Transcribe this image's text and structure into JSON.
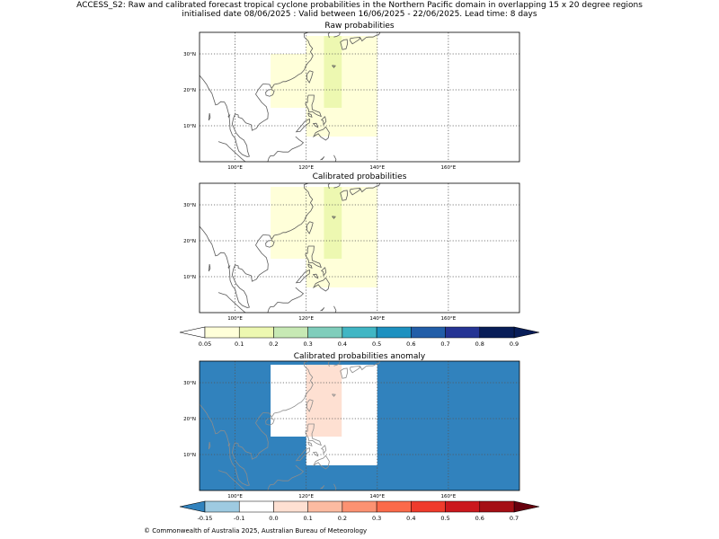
{
  "figure": {
    "title_line1": "ACCESS_S2: Raw and calibrated forecast tropical cyclone probabilities in the Northern Pacific domain in overlapping 15 x 20 degree regions",
    "title_line2": "initialised date 08/06/2025 :  Valid between 16/06/2025 - 22/06/2025. Lead time: 8 days",
    "copyright": "© Commonwealth of Australia 2025, Australian Bureau of Meteorology"
  },
  "panels": [
    {
      "id": "raw",
      "title": "Raw probabilities",
      "cells": [
        {
          "lon0": 110,
          "lon1": 130,
          "lat0": 15,
          "lat1": 30,
          "category": 0
        },
        {
          "lon0": 120,
          "lon1": 140,
          "lat0": 15,
          "lat1": 35,
          "category": 0
        },
        {
          "lon0": 120,
          "lon1": 140,
          "lat0": 7,
          "lat1": 15,
          "category": 0
        },
        {
          "lon0": 125,
          "lon1": 130,
          "lat0": 15,
          "lat1": 35,
          "category": 1
        }
      ]
    },
    {
      "id": "calibrated",
      "title": "Calibrated probabilities",
      "cells": [
        {
          "lon0": 110,
          "lon1": 130,
          "lat0": 15,
          "lat1": 35,
          "category": 0
        },
        {
          "lon0": 120,
          "lon1": 140,
          "lat0": 7,
          "lat1": 35,
          "category": 0
        },
        {
          "lon0": 125,
          "lon1": 130,
          "lat0": 15,
          "lat1": 35,
          "category": 1
        }
      ]
    },
    {
      "id": "anomaly",
      "title": "Calibrated probabilities anomaly",
      "background_category": 0,
      "cells": [
        {
          "lon0": 110,
          "lon1": 130,
          "lat0": 15,
          "lat1": 35,
          "category": 1
        },
        {
          "lon0": 120,
          "lon1": 140,
          "lat0": 7,
          "lat1": 35,
          "category": 1
        },
        {
          "lon0": 120,
          "lon1": 130,
          "lat0": 15,
          "lat1": 35,
          "category": 2
        }
      ]
    }
  ],
  "map_axes": {
    "lon_range": [
      90,
      180
    ],
    "lat_range": [
      0,
      36
    ],
    "lon_ticks": [
      100,
      120,
      140,
      160
    ],
    "lon_tick_labels": [
      "100°E",
      "120°E",
      "140°E",
      "160°E"
    ],
    "lat_ticks": [
      10,
      20,
      30
    ],
    "lat_tick_labels": [
      "10°N",
      "20°N",
      "30°N"
    ],
    "gridlines": "dotted"
  },
  "probability_colorbar": {
    "tick_labels": [
      "0.05",
      "0.1",
      "0.2",
      "0.3",
      "0.4",
      "0.5",
      "0.6",
      "0.7",
      "0.8",
      "0.9"
    ],
    "colors": [
      "#ffffd9",
      "#edf8b1",
      "#c7e9b4",
      "#7fcdbb",
      "#41b6c4",
      "#1d91c0",
      "#225ea8",
      "#253494",
      "#081d58"
    ],
    "under_color": "#ffffff",
    "over_color": "#081d58"
  },
  "anomaly_colorbar": {
    "tick_labels": [
      "-0.15",
      "-0.1",
      "0.0",
      "0.1",
      "0.2",
      "0.3",
      "0.4",
      "0.5",
      "0.6",
      "0.7"
    ],
    "colors": [
      "#9ecae1",
      "#ffffff",
      "#fee0d2",
      "#fcbba1",
      "#fc9272",
      "#fb6a4a",
      "#ef3b2c",
      "#cb181d",
      "#a50f15"
    ],
    "under_color": "#3182bd",
    "over_color": "#67000d"
  },
  "chart_data": [
    {
      "type": "heatmap",
      "title": "Raw probabilities",
      "xlabel": "",
      "ylabel": "",
      "xlim": [
        90,
        180
      ],
      "ylim": [
        0,
        36
      ],
      "regions": [
        {
          "lon": [
            110,
            130
          ],
          "lat": [
            15,
            30
          ],
          "probability_bin": "0.05-0.1"
        },
        {
          "lon": [
            120,
            140
          ],
          "lat": [
            7,
            35
          ],
          "probability_bin": "0.05-0.1"
        },
        {
          "lon": [
            125,
            130
          ],
          "lat": [
            15,
            35
          ],
          "probability_bin": "0.1-0.2"
        }
      ]
    },
    {
      "type": "heatmap",
      "title": "Calibrated probabilities",
      "xlabel": "",
      "ylabel": "",
      "xlim": [
        90,
        180
      ],
      "ylim": [
        0,
        36
      ],
      "regions": [
        {
          "lon": [
            110,
            130
          ],
          "lat": [
            15,
            35
          ],
          "probability_bin": "0.05-0.1"
        },
        {
          "lon": [
            120,
            140
          ],
          "lat": [
            7,
            35
          ],
          "probability_bin": "0.05-0.1"
        },
        {
          "lon": [
            125,
            130
          ],
          "lat": [
            15,
            35
          ],
          "probability_bin": "0.1-0.2"
        }
      ]
    },
    {
      "type": "heatmap",
      "title": "Calibrated probabilities anomaly",
      "xlabel": "",
      "ylabel": "",
      "xlim": [
        90,
        180
      ],
      "ylim": [
        0,
        36
      ],
      "background_bin": "< -0.15",
      "regions": [
        {
          "lon": [
            110,
            130
          ],
          "lat": [
            15,
            35
          ],
          "anomaly_bin": "-0.15 to -0.1"
        },
        {
          "lon": [
            120,
            140
          ],
          "lat": [
            7,
            35
          ],
          "anomaly_bin": "-0.15 to -0.1"
        },
        {
          "lon": [
            120,
            130
          ],
          "lat": [
            15,
            35
          ],
          "anomaly_bin": "-0.1 to 0.0"
        }
      ]
    }
  ]
}
